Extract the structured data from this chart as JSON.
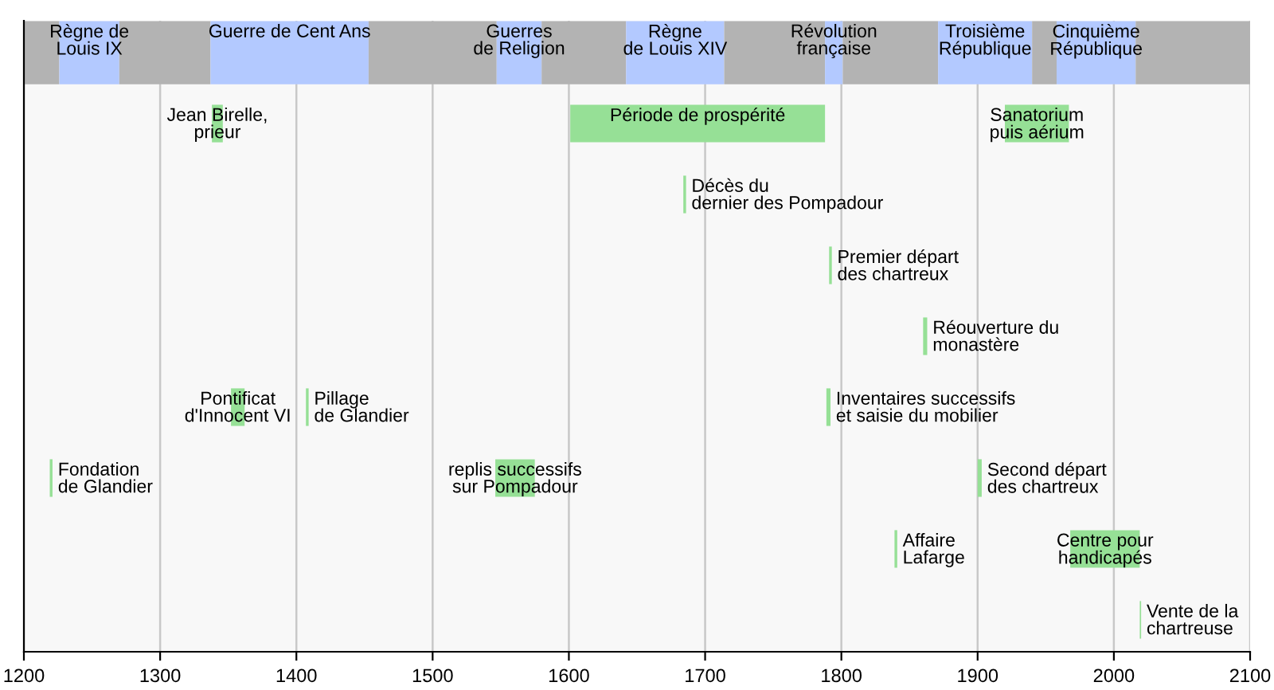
{
  "chart_data": {
    "type": "bar",
    "orientation": "horizontal",
    "categories": [
      null,
      null,
      null,
      null,
      null,
      null,
      null,
      null,
      null
    ],
    "xlim": [
      1200,
      2100
    ],
    "xticks": [
      1200,
      1300,
      1400,
      1500,
      1600,
      1700,
      1800,
      1900,
      2000,
      2100
    ],
    "grid": "x",
    "tick_labels": "x",
    "series": [
      {
        "values": [
          26,
          8,
          2,
          2,
          3,
          10,
          2,
          2,
          1
        ],
        "base": [
          1200,
          1338,
          1684,
          1791,
          1860,
          1352,
          1219,
          1839,
          2019
        ],
        "colors": [
          "#b3b3b3",
          "#96e096",
          "#96e096",
          "#96e096",
          "#96e096",
          "#96e096",
          "#96e096",
          "#96e096",
          "#96e096"
        ],
        "value_labels": [
          null,
          "Jean Birelle,\nprieur",
          "Décès du\ndernier des Pompadour",
          "Premier départ\ndes chartreux",
          "Réouverture du\nmonastère",
          "Pontificat\nd'Innocent VI",
          "Fondation\nde Glandier",
          "Affaire\nLafarge",
          "Vente de la\nchartreuse"
        ]
      },
      {
        "values": [
          44,
          187,
          null,
          null,
          null,
          2,
          29,
          51,
          null
        ],
        "base": [
          1226,
          1601,
          null,
          null,
          null,
          1407,
          1546,
          1968,
          null
        ],
        "colors": [
          "#b3c9ff",
          "#96e096",
          null,
          null,
          null,
          "#96e096",
          "#96e096",
          "#96e096",
          null
        ],
        "value_labels": [
          "Règne de\nLouis IX",
          "Période de prospérité",
          null,
          null,
          null,
          "Pillage\nde Glandier",
          "replis successifs\nsur Pompadour",
          "Centre pour\nhandicapés",
          null
        ]
      },
      {
        "values": [
          67,
          47,
          null,
          null,
          null,
          3,
          3,
          null,
          null
        ],
        "base": [
          1270,
          1920,
          null,
          null,
          null,
          1789,
          1900,
          null,
          null
        ],
        "colors": [
          "#b3b3b3",
          "#96e096",
          null,
          null,
          null,
          "#96e096",
          "#96e096",
          null,
          null
        ],
        "value_labels": [
          null,
          "Sanatorium\npuis aérium",
          null,
          null,
          null,
          "Inventaires successifs\net saisie du mobilier",
          "Second départ\ndes chartreux",
          null,
          null
        ]
      },
      {
        "values": [
          116,
          null,
          null,
          null,
          null,
          null,
          null,
          null,
          null
        ],
        "base": [
          1337,
          null,
          null,
          null,
          null,
          null,
          null,
          null,
          null
        ],
        "colors": [
          "#b3c9ff",
          null,
          null,
          null,
          null,
          null,
          null,
          null,
          null
        ],
        "value_labels": [
          "Guerre de Cent Ans",
          null,
          null,
          null,
          null,
          null,
          null,
          null,
          null
        ]
      },
      {
        "values": [
          94,
          null,
          null,
          null,
          null,
          null,
          null,
          null,
          null
        ],
        "base": [
          1453,
          null,
          null,
          null,
          null,
          null,
          null,
          null,
          null
        ],
        "colors": [
          "#b3b3b3",
          null,
          null,
          null,
          null,
          null,
          null,
          null,
          null
        ],
        "value_labels": [
          null,
          null,
          null,
          null,
          null,
          null,
          null,
          null,
          null
        ]
      },
      {
        "values": [
          33,
          null,
          null,
          null,
          null,
          null,
          null,
          null,
          null
        ],
        "base": [
          1547,
          null,
          null,
          null,
          null,
          null,
          null,
          null,
          null
        ],
        "colors": [
          "#b3c9ff",
          null,
          null,
          null,
          null,
          null,
          null,
          null,
          null
        ],
        "value_labels": [
          "Guerres\nde Religion",
          null,
          null,
          null,
          null,
          null,
          null,
          null,
          null
        ]
      },
      {
        "values": [
          62,
          null,
          null,
          null,
          null,
          null,
          null,
          null,
          null
        ],
        "base": [
          1580,
          null,
          null,
          null,
          null,
          null,
          null,
          null,
          null
        ],
        "colors": [
          "#b3b3b3",
          null,
          null,
          null,
          null,
          null,
          null,
          null,
          null
        ],
        "value_labels": [
          null,
          null,
          null,
          null,
          null,
          null,
          null,
          null,
          null
        ]
      },
      {
        "values": [
          72,
          null,
          null,
          null,
          null,
          null,
          null,
          null,
          null
        ],
        "base": [
          1642,
          null,
          null,
          null,
          null,
          null,
          null,
          null,
          null
        ],
        "colors": [
          "#b3c9ff",
          null,
          null,
          null,
          null,
          null,
          null,
          null,
          null
        ],
        "value_labels": [
          "Règne\nde Louis XIV",
          null,
          null,
          null,
          null,
          null,
          null,
          null,
          null
        ]
      },
      {
        "values": [
          74,
          null,
          null,
          null,
          null,
          null,
          null,
          null,
          null
        ],
        "base": [
          1714,
          null,
          null,
          null,
          null,
          null,
          null,
          null,
          null
        ],
        "colors": [
          "#b3b3b3",
          null,
          null,
          null,
          null,
          null,
          null,
          null,
          null
        ],
        "value_labels": [
          null,
          null,
          null,
          null,
          null,
          null,
          null,
          null,
          null
        ]
      },
      {
        "values": [
          13,
          null,
          null,
          null,
          null,
          null,
          null,
          null,
          null
        ],
        "base": [
          1788,
          null,
          null,
          null,
          null,
          null,
          null,
          null,
          null
        ],
        "colors": [
          "#b3c9ff",
          null,
          null,
          null,
          null,
          null,
          null,
          null,
          null
        ],
        "value_labels": [
          "Révolution\nfrançaise",
          null,
          null,
          null,
          null,
          null,
          null,
          null,
          null
        ]
      },
      {
        "values": [
          70,
          null,
          null,
          null,
          null,
          null,
          null,
          null,
          null
        ],
        "base": [
          1801,
          null,
          null,
          null,
          null,
          null,
          null,
          null,
          null
        ],
        "colors": [
          "#b3b3b3",
          null,
          null,
          null,
          null,
          null,
          null,
          null,
          null
        ],
        "value_labels": [
          null,
          null,
          null,
          null,
          null,
          null,
          null,
          null,
          null
        ]
      },
      {
        "values": [
          69,
          null,
          null,
          null,
          null,
          null,
          null,
          null,
          null
        ],
        "base": [
          1871,
          null,
          null,
          null,
          null,
          null,
          null,
          null,
          null
        ],
        "colors": [
          "#b3c9ff",
          null,
          null,
          null,
          null,
          null,
          null,
          null,
          null
        ],
        "value_labels": [
          "Troisième\nRépublique",
          null,
          null,
          null,
          null,
          null,
          null,
          null,
          null
        ]
      },
      {
        "values": [
          18,
          null,
          null,
          null,
          null,
          null,
          null,
          null,
          null
        ],
        "base": [
          1940,
          null,
          null,
          null,
          null,
          null,
          null,
          null,
          null
        ],
        "colors": [
          "#b3b3b3",
          null,
          null,
          null,
          null,
          null,
          null,
          null,
          null
        ],
        "value_labels": [
          null,
          null,
          null,
          null,
          null,
          null,
          null,
          null,
          null
        ]
      },
      {
        "values": [
          58,
          null,
          null,
          null,
          null,
          null,
          null,
          null,
          null
        ],
        "base": [
          1958,
          null,
          null,
          null,
          null,
          null,
          null,
          null,
          null
        ],
        "colors": [
          "#b3c9ff",
          null,
          null,
          null,
          null,
          null,
          null,
          null,
          null
        ],
        "value_labels": [
          "Cinquième\nRépublique",
          null,
          null,
          null,
          null,
          null,
          null,
          null,
          null
        ]
      },
      {
        "values": [
          84,
          null,
          null,
          null,
          null,
          null,
          null,
          null,
          null
        ],
        "base": [
          2016,
          null,
          null,
          null,
          null,
          null,
          null,
          null,
          null
        ],
        "colors": [
          "#b3b3b3",
          null,
          null,
          null,
          null,
          null,
          null,
          null,
          null
        ],
        "value_labels": [
          null,
          null,
          null,
          null,
          null,
          null,
          null,
          null,
          null
        ]
      }
    ]
  }
}
